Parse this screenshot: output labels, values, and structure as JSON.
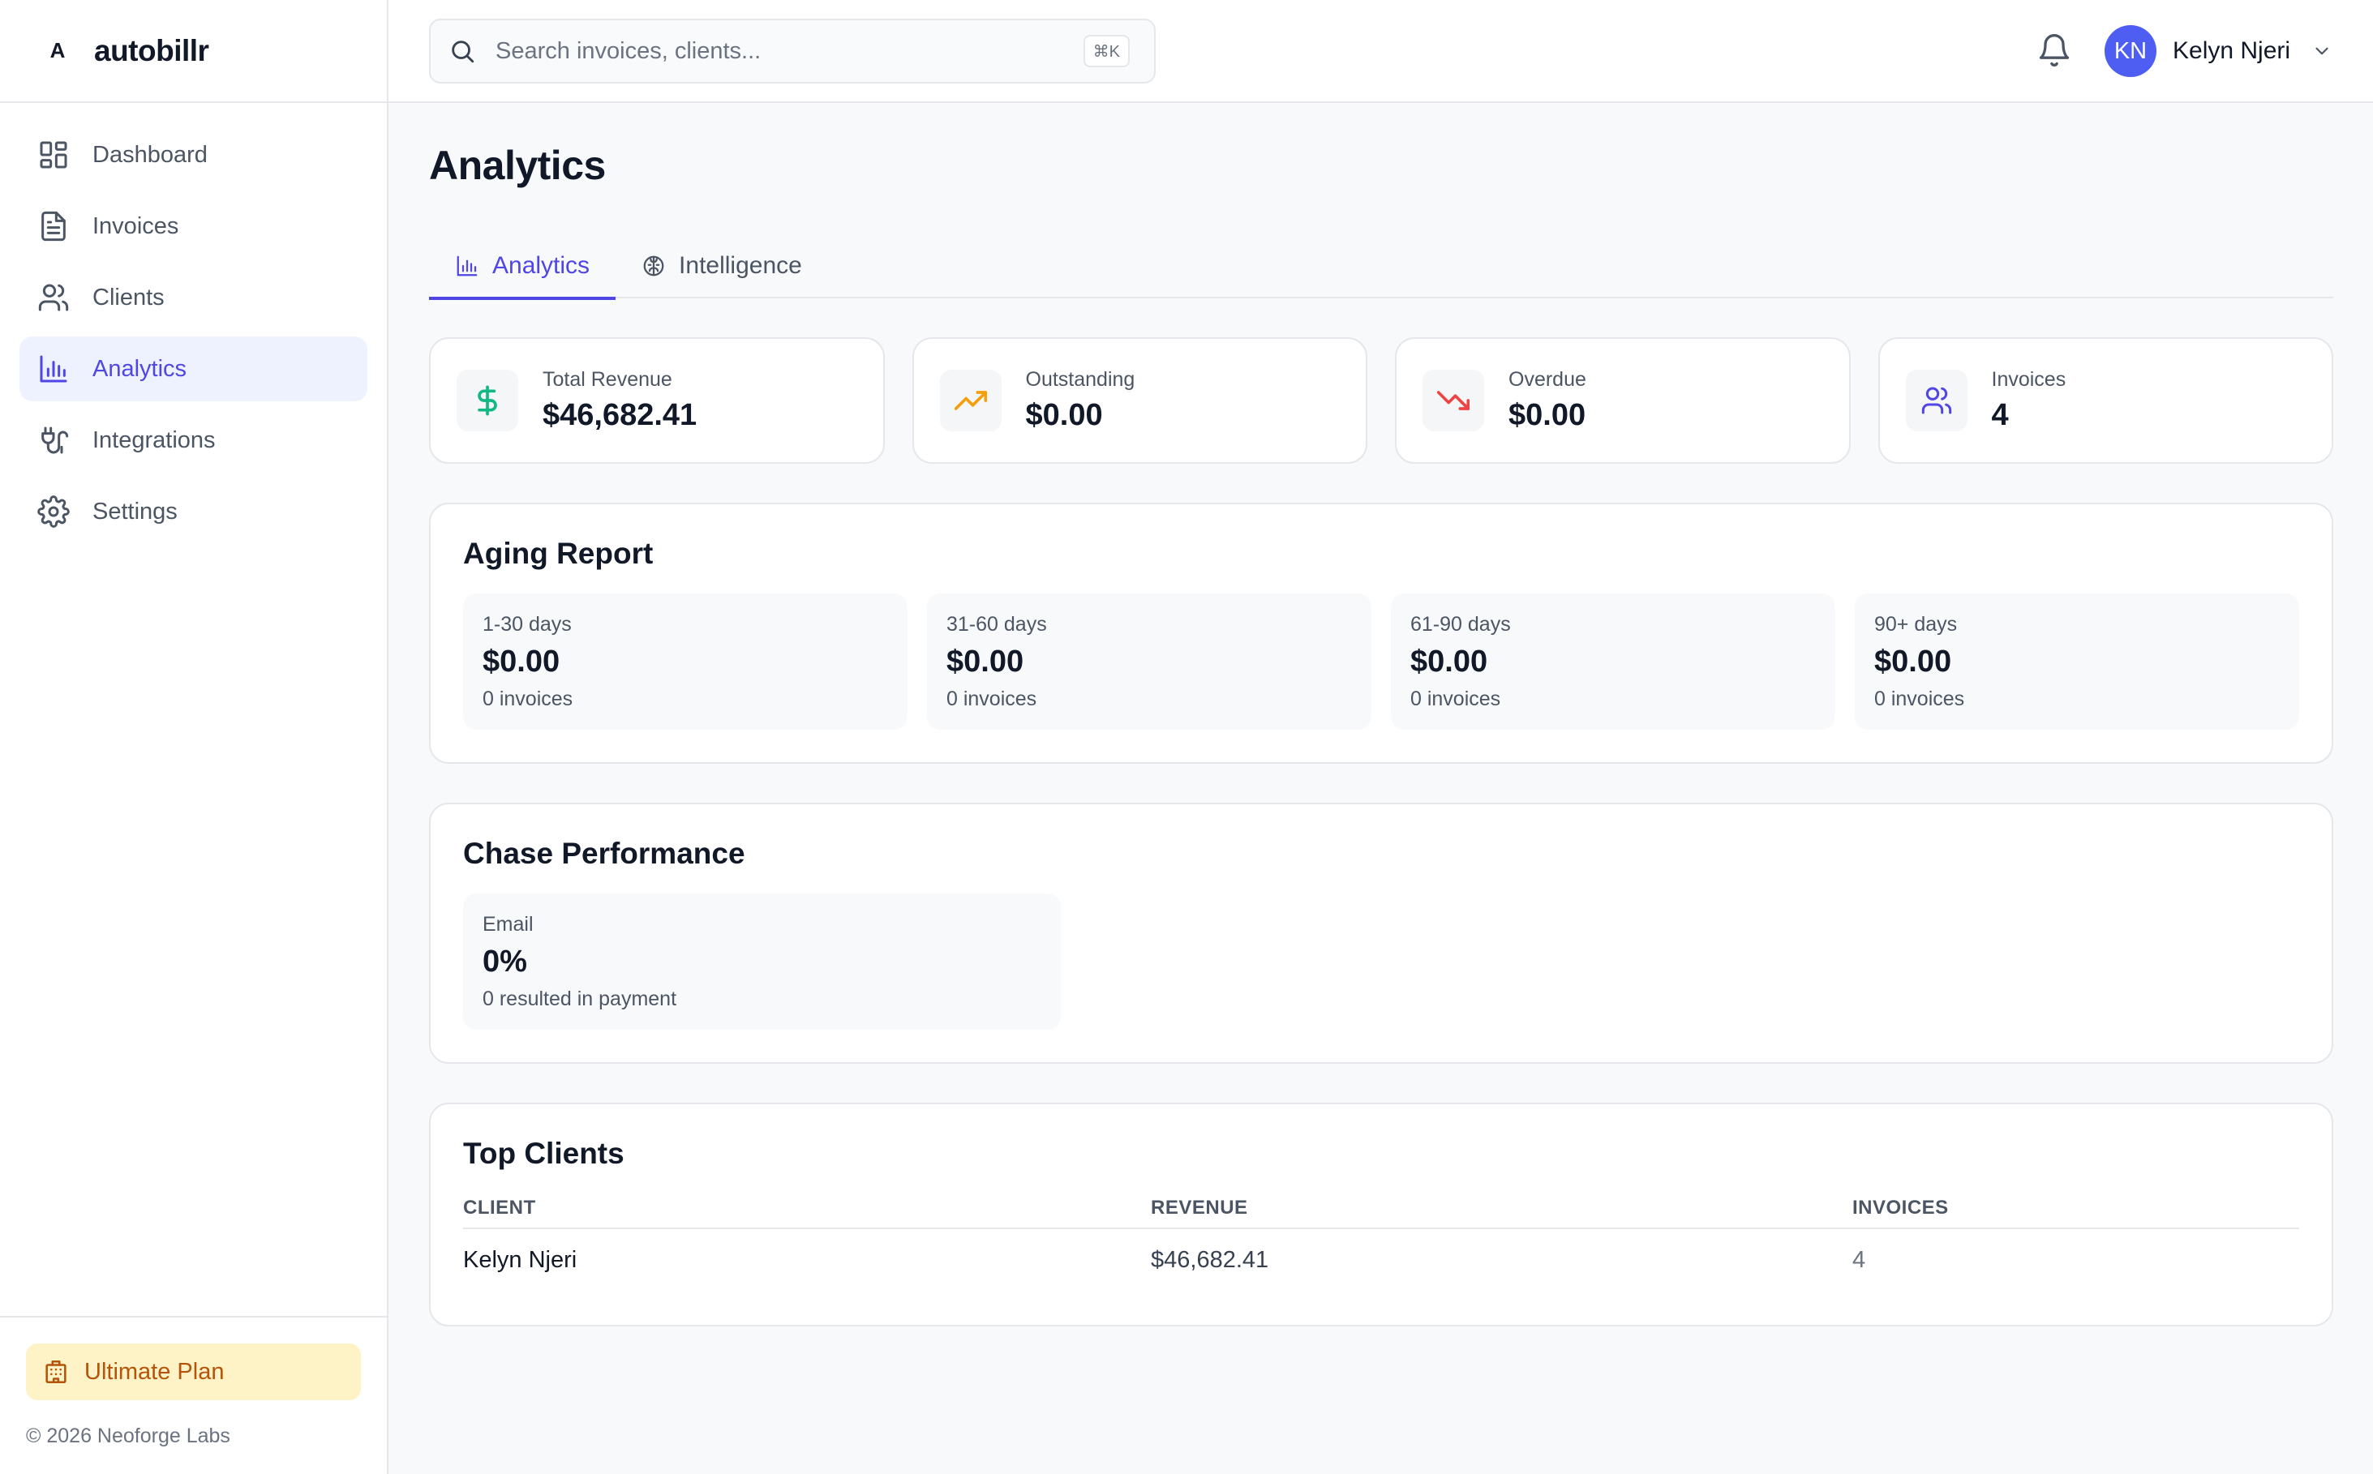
{
  "brand": {
    "logo": "A",
    "name": "autobillr"
  },
  "nav": {
    "items": [
      {
        "label": "Dashboard",
        "icon": "dashboard-icon"
      },
      {
        "label": "Invoices",
        "icon": "file-text-icon"
      },
      {
        "label": "Clients",
        "icon": "users-icon"
      },
      {
        "label": "Analytics",
        "icon": "bar-chart-icon",
        "active": true
      },
      {
        "label": "Integrations",
        "icon": "plug-icon"
      },
      {
        "label": "Settings",
        "icon": "gear-icon"
      }
    ]
  },
  "sidebar_footer": {
    "plan_label": "Ultimate Plan",
    "copyright": "© 2026 Neoforge Labs"
  },
  "search": {
    "placeholder": "Search invoices, clients...",
    "shortcut": "⌘K"
  },
  "user": {
    "initials": "KN",
    "name": "Kelyn Njeri"
  },
  "page": {
    "title": "Analytics"
  },
  "tabs": [
    {
      "label": "Analytics",
      "active": true
    },
    {
      "label": "Intelligence"
    }
  ],
  "stats": [
    {
      "label": "Total Revenue",
      "value": "$46,682.41",
      "icon": "dollar-icon",
      "color": "#10b981"
    },
    {
      "label": "Outstanding",
      "value": "$0.00",
      "icon": "trending-up-icon",
      "color": "#f59e0b"
    },
    {
      "label": "Overdue",
      "value": "$0.00",
      "icon": "trending-down-icon",
      "color": "#ef4444"
    },
    {
      "label": "Invoices",
      "value": "4",
      "icon": "users-icon",
      "color": "#4f46e5"
    }
  ],
  "aging": {
    "title": "Aging Report",
    "buckets": [
      {
        "label": "1-30 days",
        "value": "$0.00",
        "sub": "0 invoices"
      },
      {
        "label": "31-60 days",
        "value": "$0.00",
        "sub": "0 invoices"
      },
      {
        "label": "61-90 days",
        "value": "$0.00",
        "sub": "0 invoices"
      },
      {
        "label": "90+ days",
        "value": "$0.00",
        "sub": "0 invoices"
      }
    ]
  },
  "chase": {
    "title": "Chase Performance",
    "channels": [
      {
        "label": "Email",
        "value": "0%",
        "sub": "0 resulted in payment"
      }
    ]
  },
  "top_clients": {
    "title": "Top Clients",
    "columns": [
      "CLIENT",
      "REVENUE",
      "INVOICES"
    ],
    "rows": [
      {
        "client": "Kelyn Njeri",
        "revenue": "$46,682.41",
        "invoices": "4"
      }
    ]
  }
}
